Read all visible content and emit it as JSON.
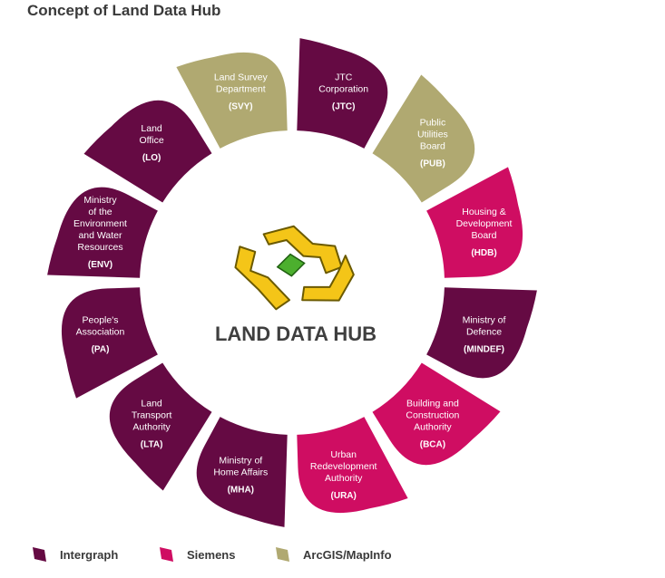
{
  "title": "Concept of Land Data Hub",
  "hub": {
    "title": "LAND DATA HUB",
    "logo_icon": "land-data-hub-logo-icon"
  },
  "colors": {
    "intergraph": "#650a43",
    "siemens": "#cf0d62",
    "arcgis": "#b0a971"
  },
  "segments": [
    {
      "lines": [
        "JTC",
        "Corporation"
      ],
      "abbr": "(JTC)",
      "vendor": "intergraph"
    },
    {
      "lines": [
        "Public",
        "Utilities",
        "Board"
      ],
      "abbr": "(PUB)",
      "vendor": "arcgis"
    },
    {
      "lines": [
        "Housing &",
        "Development",
        "Board"
      ],
      "abbr": "(HDB)",
      "vendor": "siemens"
    },
    {
      "lines": [
        "Ministry of",
        "Defence"
      ],
      "abbr": "(MINDEF)",
      "vendor": "intergraph"
    },
    {
      "lines": [
        "Building and",
        "Construction",
        "Authority"
      ],
      "abbr": "(BCA)",
      "vendor": "siemens"
    },
    {
      "lines": [
        "Urban",
        "Redevelopment",
        "Authority"
      ],
      "abbr": "(URA)",
      "vendor": "siemens"
    },
    {
      "lines": [
        "Ministry of",
        "Home Affairs"
      ],
      "abbr": "(MHA)",
      "vendor": "intergraph"
    },
    {
      "lines": [
        "Land",
        "Transport",
        "Authority"
      ],
      "abbr": "(LTA)",
      "vendor": "intergraph"
    },
    {
      "lines": [
        "People's",
        "Association"
      ],
      "abbr": "(PA)",
      "vendor": "intergraph"
    },
    {
      "lines": [
        "Ministry",
        "of the",
        "Environment",
        "and Water",
        "Resources"
      ],
      "abbr": "(ENV)",
      "vendor": "intergraph"
    },
    {
      "lines": [
        "Land",
        "Office"
      ],
      "abbr": "(LO)",
      "vendor": "intergraph"
    },
    {
      "lines": [
        "Land Survey",
        "Department"
      ],
      "abbr": "(SVY)",
      "vendor": "arcgis"
    }
  ],
  "legend": [
    {
      "label": "Intergraph",
      "vendor": "intergraph"
    },
    {
      "label": "Siemens",
      "vendor": "siemens"
    },
    {
      "label": "ArcGIS/MapInfo",
      "vendor": "arcgis"
    }
  ]
}
